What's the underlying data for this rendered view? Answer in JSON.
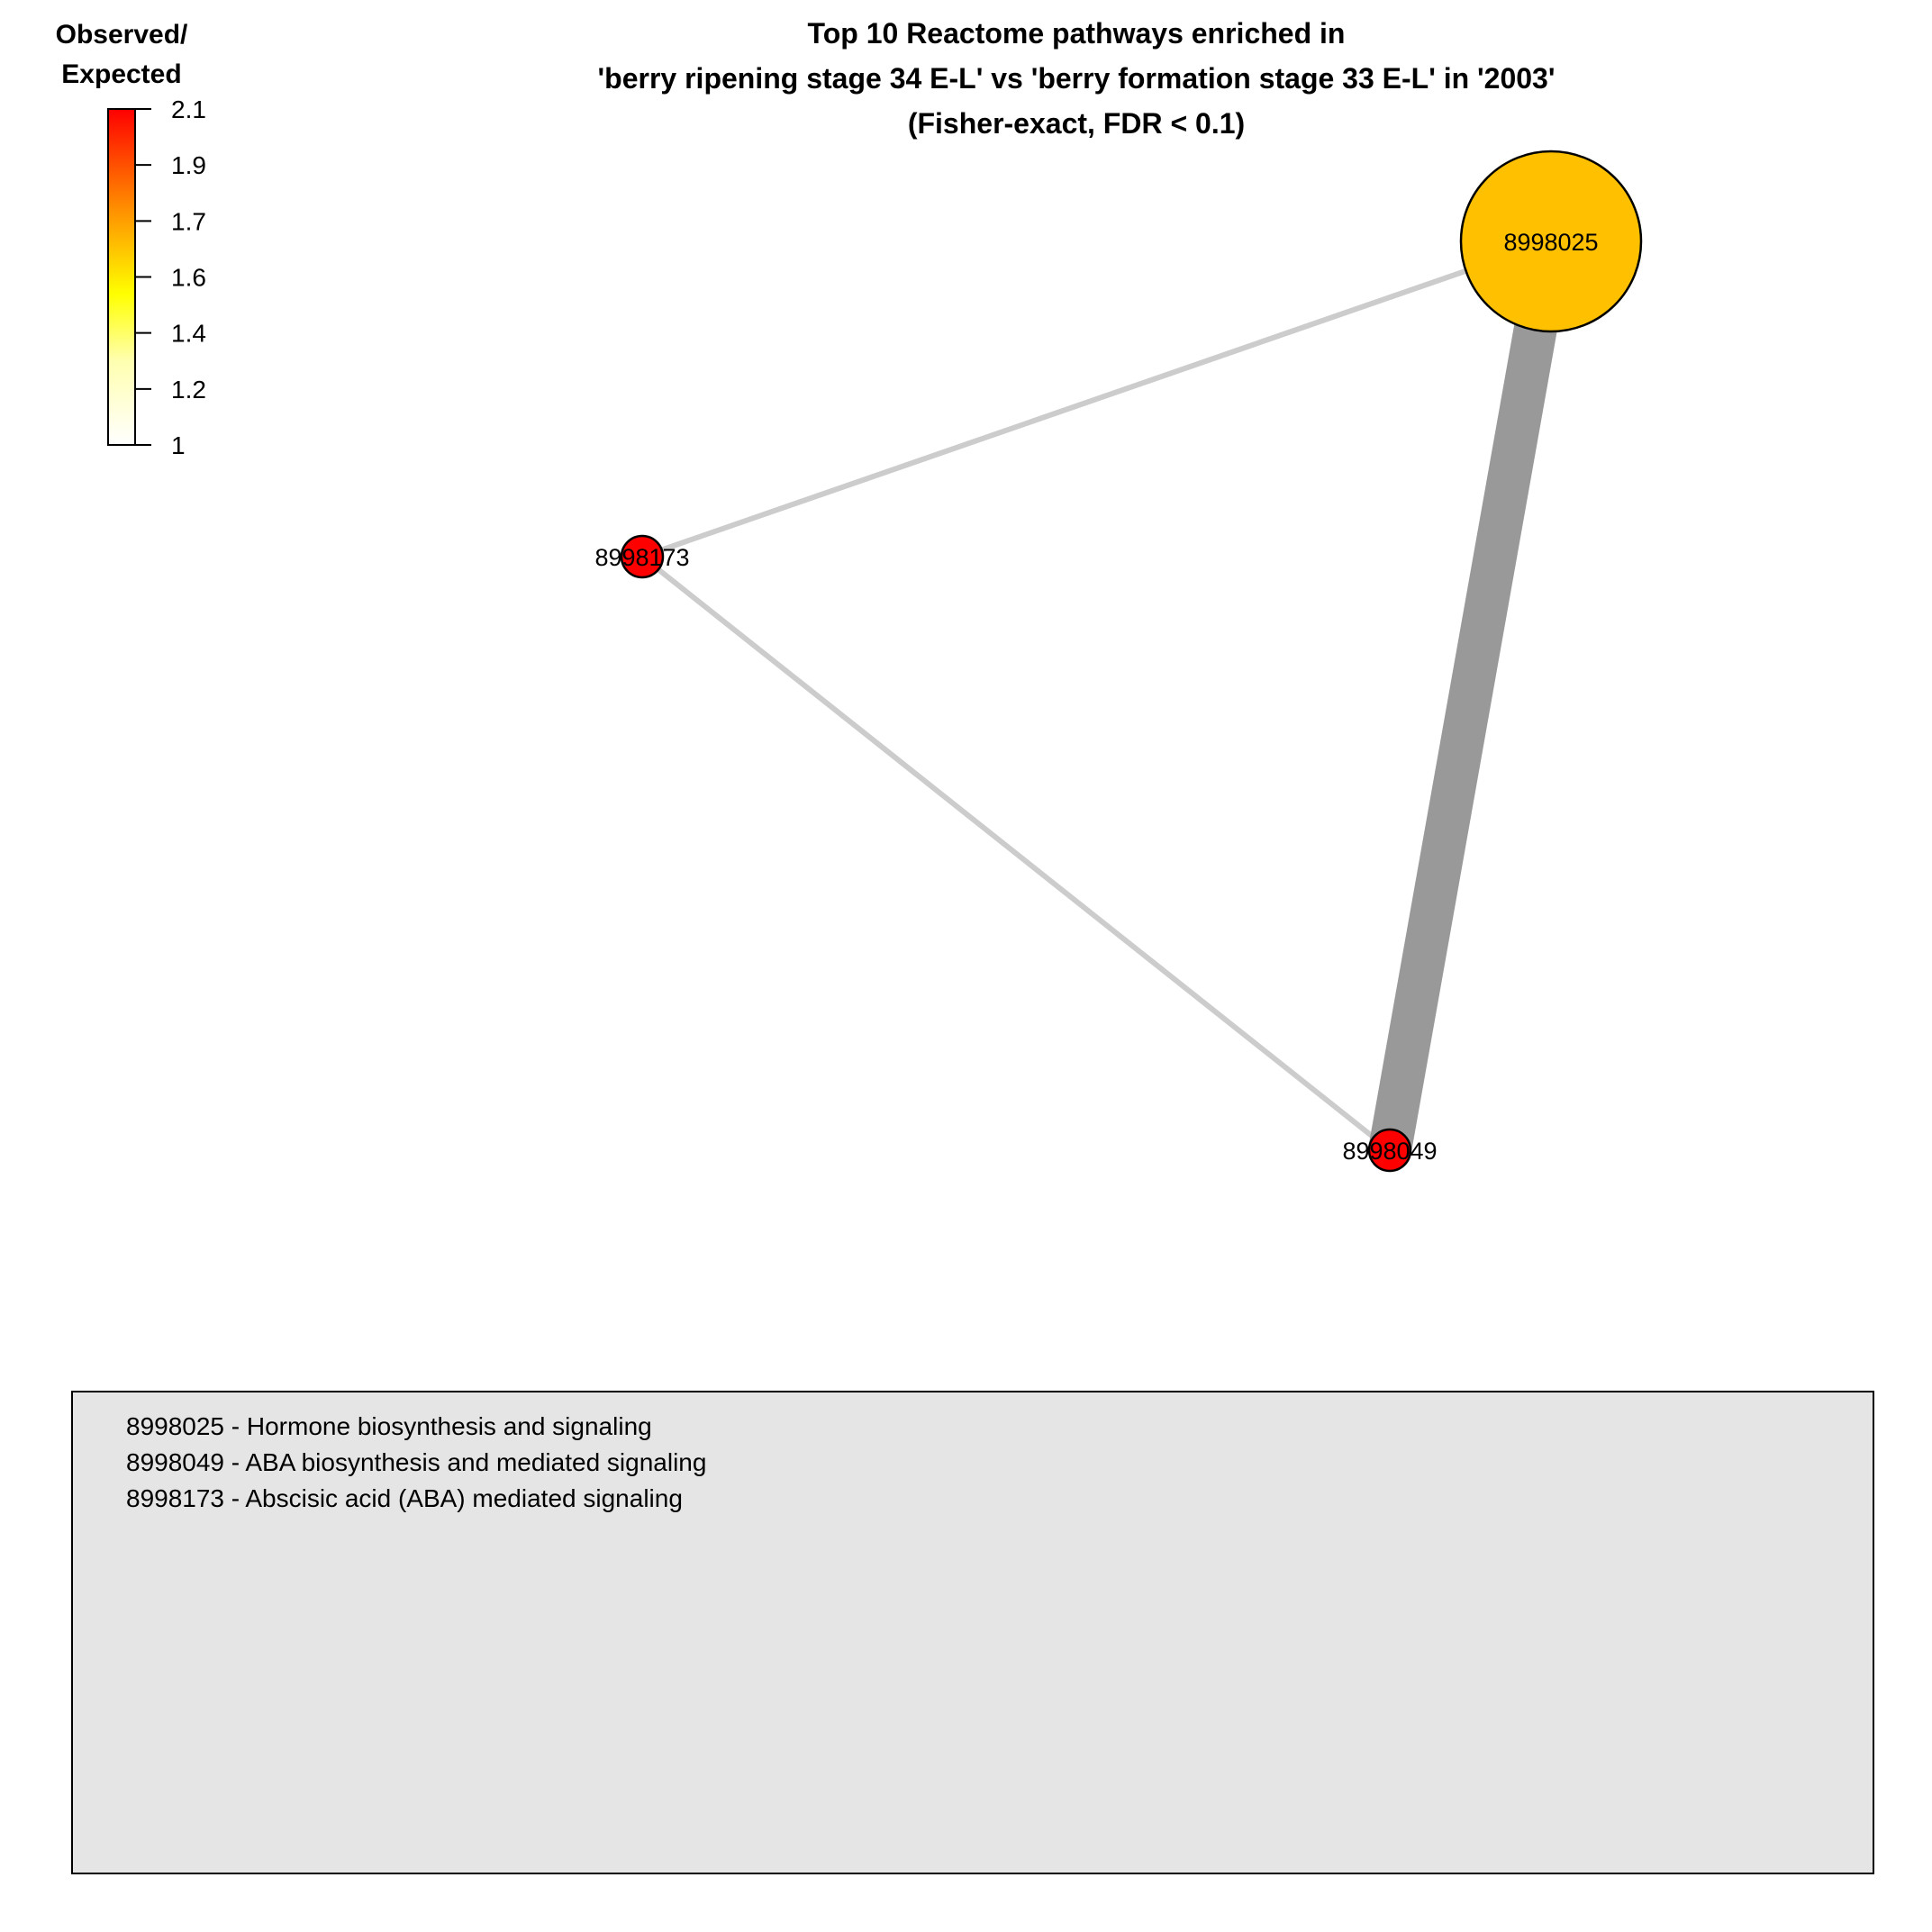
{
  "title": {
    "lines": [
      "Top 10 Reactome pathways enriched in",
      "'berry ripening stage 34 E-L' vs 'berry formation stage 33 E-L' in '2003'",
      "(Fisher-exact, FDR < 0.1)"
    ]
  },
  "colorbar": {
    "title_lines": [
      "Observed/",
      "Expected"
    ],
    "ticks": [
      "2.1",
      "1.9",
      "1.7",
      "1.6",
      "1.4",
      "1.2",
      "1"
    ],
    "colors": [
      "#ff0000",
      "#ff7000",
      "#ffd000",
      "#ffff00",
      "#ffff80",
      "#ffffc8",
      "#ffffff"
    ]
  },
  "nodes": [
    {
      "id": "8998025",
      "label": "8998025",
      "color": "#ffc000"
    },
    {
      "id": "8998173",
      "label": "8998173",
      "color": "#ff0000"
    },
    {
      "id": "8998049",
      "label": "8998049",
      "color": "#ff0000"
    }
  ],
  "edges": [
    {
      "from": "8998025",
      "to": "8998173",
      "color": "#cccccc"
    },
    {
      "from": "8998173",
      "to": "8998049",
      "color": "#cccccc"
    },
    {
      "from": "8998025",
      "to": "8998049",
      "color": "#999999"
    }
  ],
  "key": {
    "background": "#e5e5e5",
    "entries": [
      "8998025 - Hormone biosynthesis and signaling",
      "8998049 - ABA biosynthesis and mediated signaling",
      "8998173 - Abscisic acid (ABA) mediated signaling"
    ]
  }
}
